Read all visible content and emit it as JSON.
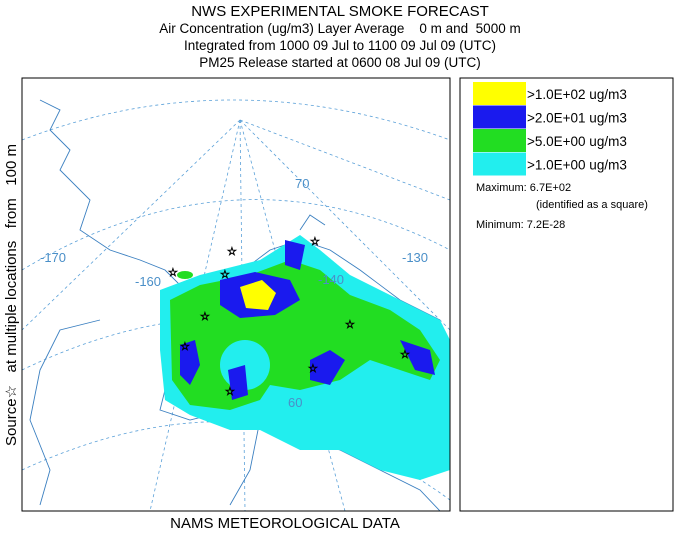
{
  "header": {
    "title": "NWS EXPERIMENTAL SMOKE FORECAST",
    "line1": "Air Concentration (ug/m3) Layer Average    0 m and  5000 m",
    "line2": "Integrated from 1000 09 Jul to 1100 09 Jul 09 (UTC)",
    "line3": "PM25 Release started at 0600 08 Jul 09 (UTC)"
  },
  "side_label": "Source☆   at multiple locations   from   100 m",
  "footer": "NAMS METEOROLOGICAL DATA",
  "map": {
    "labels": [
      "-170",
      "-160",
      "-140",
      "-130",
      "70",
      "60"
    ]
  },
  "legend": {
    "items": [
      {
        "label": ">1.0E+02 ug/m3",
        "color": "#ffff00"
      },
      {
        "label": ">2.0E+01 ug/m3",
        "color": "#1a1aee"
      },
      {
        "label": ">5.0E+00 ug/m3",
        "color": "#22dd22"
      },
      {
        "label": ">1.0E+00 ug/m3",
        "color": "#22eeee"
      }
    ],
    "maximum": "Maximum: 6.7E+02",
    "maximum_note": "(identified as a square)",
    "minimum": "Minimum: 7.2E-28"
  }
}
